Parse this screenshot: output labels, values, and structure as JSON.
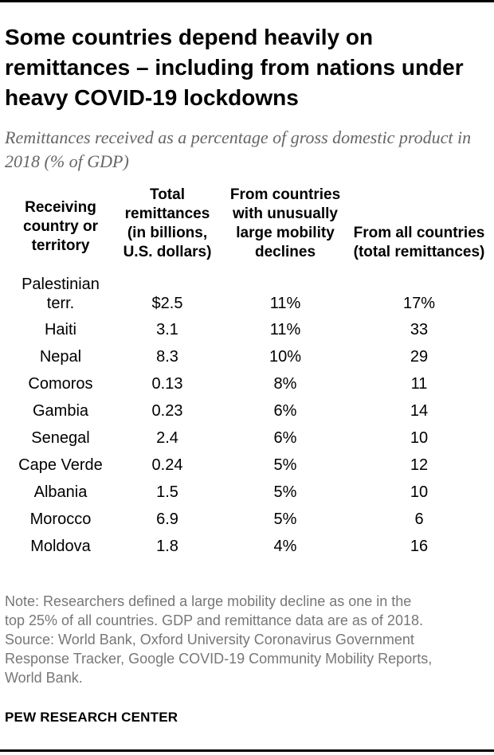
{
  "title": "Some countries depend heavily on remittances – including from nations under heavy COVID-19 lockdowns",
  "subtitle": "Remittances received as a percentage of gross domestic product in 2018 (% of GDP)",
  "chart_data": {
    "type": "table",
    "columns": [
      "Receiving country or territory",
      "Total remittances (in billions, U.S. dollars)",
      "From countries with unusually large mobility declines",
      "From all countries (total remittances)"
    ],
    "rows": [
      [
        "Palestinian terr.",
        "$2.5",
        "11%",
        "17%"
      ],
      [
        "Haiti",
        "3.1",
        "11%",
        "33"
      ],
      [
        "Nepal",
        "8.3",
        "10%",
        "29"
      ],
      [
        "Comoros",
        "0.13",
        "8%",
        "11"
      ],
      [
        "Gambia",
        "0.23",
        "6%",
        "14"
      ],
      [
        "Senegal",
        "2.4",
        "6%",
        "10"
      ],
      [
        "Cape Verde",
        "0.24",
        "5%",
        "12"
      ],
      [
        "Albania",
        "1.5",
        "5%",
        "10"
      ],
      [
        "Morocco",
        "6.9",
        "5%",
        "6"
      ],
      [
        "Moldova",
        "1.8",
        "4%",
        "16"
      ]
    ]
  },
  "note_lines": [
    "Note: Researchers defined a large mobility decline as one in the",
    "top 25% of all countries. GDP and remittance data are as of 2018.",
    "Source: World Bank, Oxford University Coronavirus Government",
    "Response Tracker, Google COVID-19 Community Mobility Reports,",
    "World Bank."
  ],
  "brand": "PEW RESEARCH CENTER"
}
